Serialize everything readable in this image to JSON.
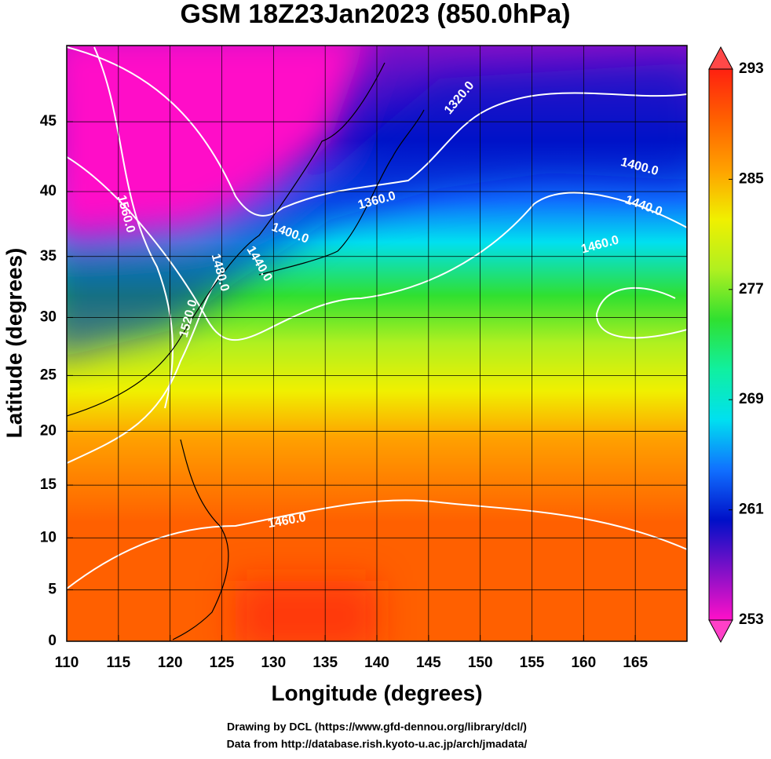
{
  "chart_data": {
    "type": "map",
    "title": "GSM 18Z23Jan2023 (850.0hPa)",
    "x_label": "Longitude (degrees)",
    "y_label": "Latitude  (degrees)",
    "xlim": [
      110,
      170
    ],
    "ylim": [
      0,
      50
    ],
    "y_scale": "mercator",
    "xticks": [
      110,
      115,
      120,
      125,
      130,
      135,
      140,
      145,
      150,
      155,
      160,
      165
    ],
    "yticks": [
      0,
      5,
      10,
      15,
      20,
      25,
      30,
      35,
      40,
      45
    ],
    "grid": true,
    "colorbar": {
      "lim": [
        253,
        293
      ],
      "ticks": [
        253,
        261,
        269,
        277,
        285,
        293
      ],
      "colors": [
        "#ff10c8",
        "#8010c8",
        "#0010c8",
        "#1070ff",
        "#00e0f0",
        "#10f0a0",
        "#30e030",
        "#b0f020",
        "#f0f000",
        "#ffa000",
        "#ff6000",
        "#ff2010"
      ],
      "over_color": "#ff4848",
      "under_color": "#ff40c8"
    },
    "contour_labels": [
      {
        "label": "1320.0",
        "x": 148.0,
        "y": 46.6
      },
      {
        "label": "1400.0",
        "x": 165.4,
        "y": 41.8
      },
      {
        "label": "1360.0",
        "x": 140.0,
        "y": 39.3
      },
      {
        "label": "1440.0",
        "x": 165.8,
        "y": 38.9
      },
      {
        "label": "1400.0",
        "x": 131.6,
        "y": 36.8
      },
      {
        "label": "1460.0",
        "x": 161.6,
        "y": 35.9
      },
      {
        "label": "1440.0",
        "x": 128.6,
        "y": 34.4
      },
      {
        "label": "1560.0",
        "x": 115.7,
        "y": 38.3
      },
      {
        "label": "1480.0",
        "x": 124.8,
        "y": 33.7
      },
      {
        "label": "1520.0",
        "x": 121.8,
        "y": 29.9
      },
      {
        "label": "1460.0",
        "x": 131.3,
        "y": 11.6
      }
    ],
    "footer": [
      "Drawing by DCL (https://www.gfd-dennou.org/library/dcl/)",
      "Data from http://database.rish.kyoto-u.ac.jp/arch/jmadata/"
    ]
  }
}
